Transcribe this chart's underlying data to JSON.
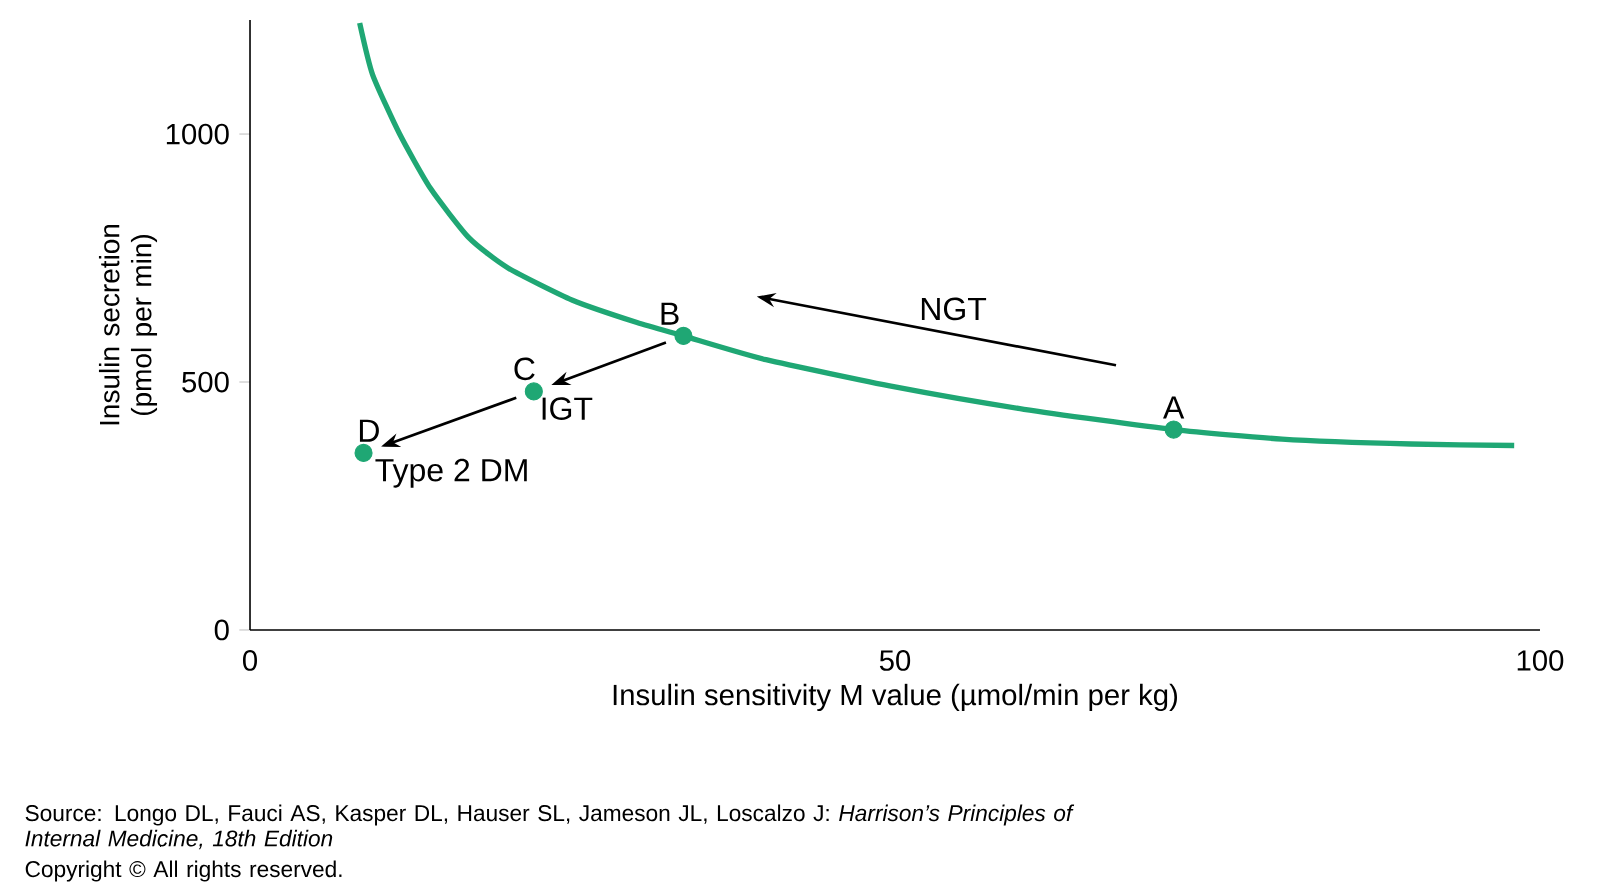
{
  "chart_data": {
    "type": "line",
    "xlabel": "Insulin sensitivity M value (µmol/min per kg)",
    "ylabel": "Insulin secretion (pmol per min)",
    "xlim": [
      0,
      100
    ],
    "ylim": [
      0,
      1230
    ],
    "xticks": [
      0,
      50,
      100
    ],
    "yticks": [
      0,
      500,
      1000
    ],
    "grid": false,
    "series": [
      {
        "type": "line",
        "color": "#1fa774",
        "marker": "none",
        "x": [
          8.5,
          9.5,
          11.6,
          14,
          17,
          20,
          25,
          30,
          33.6,
          40,
          50,
          60,
          71.6,
          80,
          90,
          98
        ],
        "values": [
          1224,
          1120,
          1000,
          890,
          790,
          730,
          665,
          620,
          593,
          545,
          490,
          445,
          404,
          385,
          375,
          372
        ]
      },
      {
        "type": "scatter",
        "color": "#1fa774",
        "marker": "circle",
        "x": [
          71.6,
          33.6,
          22,
          8.8
        ],
        "values": [
          404,
          593,
          481,
          357
        ]
      }
    ],
    "annotations": [
      {
        "text": "A",
        "x": 71.6,
        "y": 404
      },
      {
        "text": "B",
        "x": 33.6,
        "y": 593
      },
      {
        "text": "C",
        "x": 22,
        "y": 481
      },
      {
        "text": "D",
        "x": 8.8,
        "y": 357
      },
      "NGT",
      {
        "text": "IGT",
        "x": 22,
        "y": 481
      },
      {
        "text": "Type 2 DM",
        "x": 8.8,
        "y": 357
      },
      "Source: Longo DL, Fauci AS, Kasper DL, Hauser SL, Jameson JL, Loscalzo J: *Harrison’s Principles of Internal Medicine, 18th Edition*",
      "Copyright © All rights reserved."
    ]
  }
}
